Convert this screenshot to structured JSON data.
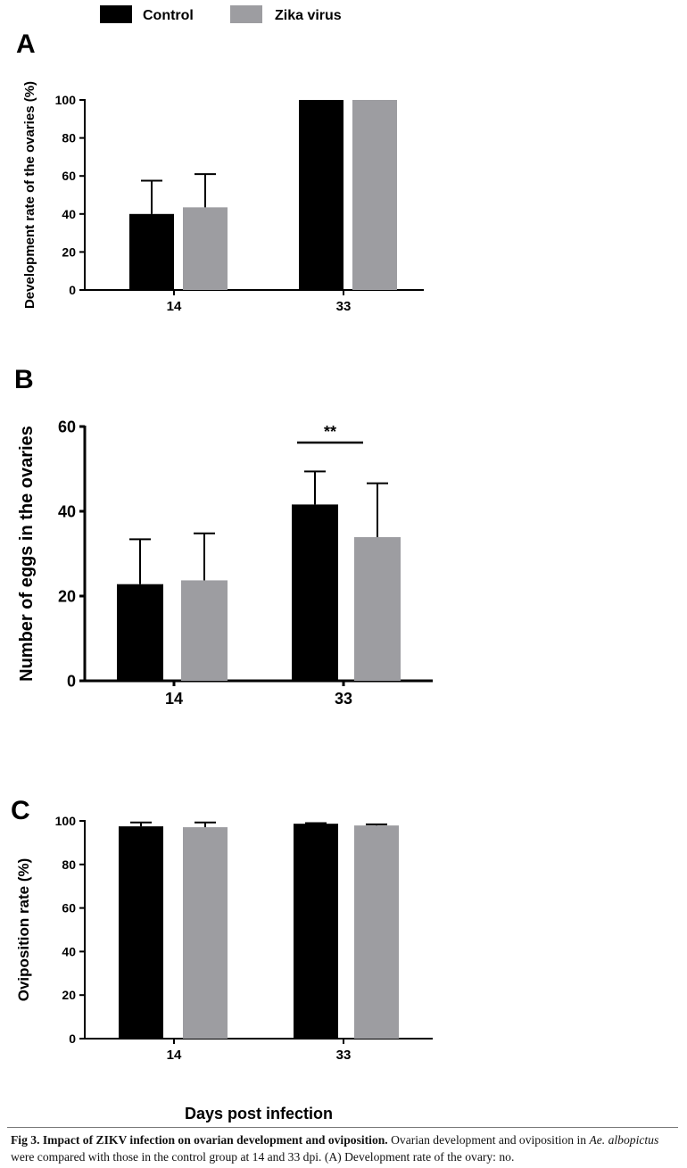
{
  "legend": {
    "items": [
      {
        "label": "Control",
        "color": "#000000"
      },
      {
        "label": "Zika virus",
        "color": "#9d9da1"
      }
    ]
  },
  "chart_data": [
    {
      "panel": "A",
      "type": "bar",
      "categories": [
        "14",
        "33"
      ],
      "series": [
        {
          "name": "Control",
          "values": [
            40,
            100
          ],
          "errors": [
            17.5,
            0
          ]
        },
        {
          "name": "Zika virus",
          "values": [
            43.5,
            100
          ],
          "errors": [
            17.5,
            0
          ]
        }
      ],
      "ylabel": "Development rate of the ovaries (%)",
      "ylim": [
        0,
        100
      ],
      "yticks": [
        0,
        20,
        40,
        60,
        80,
        100
      ],
      "significance": ""
    },
    {
      "panel": "B",
      "type": "bar",
      "categories": [
        "14",
        "33"
      ],
      "series": [
        {
          "name": "Control",
          "values": [
            22.8,
            41.6
          ],
          "errors": [
            10.6,
            7.8
          ]
        },
        {
          "name": "Zika virus",
          "values": [
            23.7,
            33.9
          ],
          "errors": [
            11.1,
            12.7
          ]
        }
      ],
      "ylabel": "Number of eggs in the ovaries",
      "ylim": [
        0,
        60
      ],
      "yticks": [
        0,
        20,
        40,
        60
      ],
      "significance": "**"
    },
    {
      "panel": "C",
      "type": "bar",
      "categories": [
        "14",
        "33"
      ],
      "series": [
        {
          "name": "Control",
          "values": [
            97.5,
            98.7
          ],
          "errors": [
            1.8,
            0.3
          ]
        },
        {
          "name": "Zika virus",
          "values": [
            97.1,
            97.9
          ],
          "errors": [
            2.2,
            0.5
          ]
        }
      ],
      "ylabel": "Oviposition rate (%)",
      "ylim": [
        0,
        100
      ],
      "yticks": [
        0,
        20,
        40,
        60,
        80,
        100
      ],
      "significance": ""
    }
  ],
  "xlabel": "Days post infection",
  "caption": {
    "title": "Fig 3. Impact of ZIKV infection on ovarian development and oviposition.",
    "text_before_italic": " Ovarian development and oviposition in ",
    "italic": "Ae. albopictus",
    "text_after_italic": " were compared with those in the control group at 14 and 33 dpi. (A) Development rate of the ovary: no."
  }
}
